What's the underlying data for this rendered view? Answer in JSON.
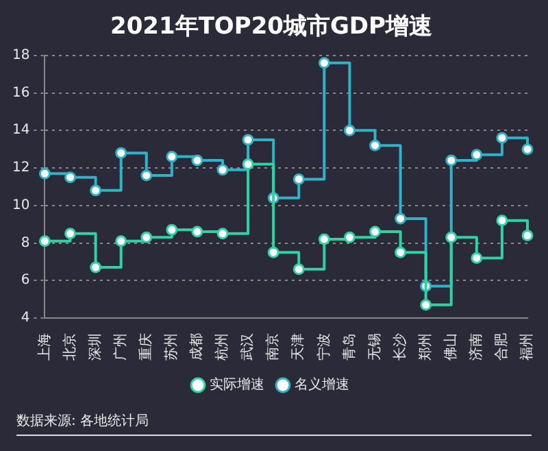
{
  "chart_data": {
    "type": "step",
    "title": "2021年TOP20城市GDP增速",
    "categories": [
      "上海",
      "北京",
      "深圳",
      "广州",
      "重庆",
      "苏州",
      "成都",
      "杭州",
      "武汉",
      "南京",
      "天津",
      "宁波",
      "青岛",
      "无锡",
      "长沙",
      "郑州",
      "佛山",
      "济南",
      "合肥",
      "福州"
    ],
    "series": [
      {
        "name": "实际增速",
        "color": "#2ed3a4",
        "values": [
          8.1,
          8.5,
          6.7,
          8.1,
          8.3,
          8.7,
          8.6,
          8.5,
          12.2,
          7.5,
          6.6,
          8.2,
          8.3,
          8.6,
          7.5,
          4.7,
          8.3,
          7.2,
          9.2,
          8.4
        ]
      },
      {
        "name": "名义增速",
        "color": "#2fb3c8",
        "values": [
          11.7,
          11.5,
          10.8,
          12.8,
          11.6,
          12.6,
          12.4,
          11.9,
          13.5,
          10.4,
          11.4,
          17.6,
          14.0,
          13.2,
          9.3,
          5.7,
          12.4,
          12.7,
          13.6,
          13.0
        ]
      }
    ],
    "ylim": [
      4,
      18
    ],
    "yticks": [
      4,
      6,
      8,
      10,
      12,
      14,
      16,
      18
    ],
    "grid": "y",
    "legend": "bottom",
    "marker": "circle",
    "annotations": [
      "数据来源: 各地统计局"
    ]
  }
}
